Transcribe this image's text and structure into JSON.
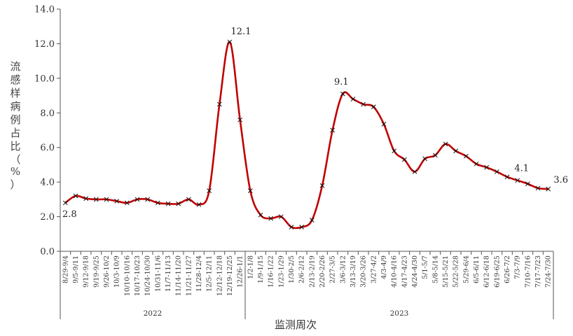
{
  "chart_data": {
    "type": "line",
    "xlabel": "监测周次",
    "ylabel": "流感样病例占比（%）",
    "ylim": [
      0,
      14
    ],
    "yticks": [
      "0.0",
      "2.0",
      "4.0",
      "6.0",
      "8.0",
      "10.0",
      "12.0",
      "14.0"
    ],
    "line_color": "#c00000",
    "marker": "x",
    "categories": [
      "8/29-9/4",
      "9/5-9/11",
      "9/12-9/18",
      "9/19-9/25",
      "9/26-10/2",
      "10/3-10/9",
      "10/10-10/16",
      "10/17-10/23",
      "10/24-10/30",
      "10/31-11/6",
      "11/7-11/13",
      "11/14-11/20",
      "11/21-11/27",
      "11/28-12/4",
      "12/5-12/11",
      "12/12-12/18",
      "12/19-12/25",
      "12/26-1/1",
      "1/2-1/8",
      "1/9-1/15",
      "1/16-1/22",
      "1/23-1/29",
      "1/30-2/5",
      "2/6-2/12",
      "2/13-2/19",
      "2/20-2/26",
      "2/27-3/5",
      "3/6-3/12",
      "3/13-3/19",
      "3/20-3/26",
      "3/27-4/2",
      "4/3-4/9",
      "4/10-4/16",
      "4/17-4/23",
      "4/24-4/30",
      "5/1-5/7",
      "5/8-5/14",
      "5/15-5/21",
      "5/22-5/28",
      "5/29-6/4",
      "6/5-6/11",
      "6/12-6/18",
      "6/19-6/25",
      "6/26-7/2",
      "7/3-7/9",
      "7/10-7/16",
      "7/17-7/23",
      "7/24-7/30"
    ],
    "values": [
      2.8,
      3.2,
      3.05,
      3.0,
      3.0,
      2.9,
      2.8,
      3.0,
      3.0,
      2.8,
      2.75,
      2.75,
      3.0,
      2.7,
      3.5,
      8.5,
      12.1,
      7.6,
      3.5,
      2.1,
      1.9,
      2.0,
      1.4,
      1.4,
      1.8,
      3.8,
      7.0,
      9.1,
      8.8,
      8.5,
      8.35,
      7.35,
      5.8,
      5.3,
      4.6,
      5.35,
      5.55,
      6.2,
      5.8,
      5.5,
      5.05,
      4.85,
      4.6,
      4.3,
      4.1,
      3.9,
      3.65,
      3.6
    ],
    "year_groups": [
      {
        "label": "2022",
        "start": 0,
        "end": 17
      },
      {
        "label": "2023",
        "start": 18,
        "end": 47
      }
    ],
    "data_labels": [
      {
        "index": 0,
        "text": "2.8"
      },
      {
        "index": 16,
        "text": "12.1"
      },
      {
        "index": 27,
        "text": "9.1"
      },
      {
        "index": 44,
        "text": "4.1"
      },
      {
        "index": 47,
        "text": "3.6"
      }
    ]
  }
}
